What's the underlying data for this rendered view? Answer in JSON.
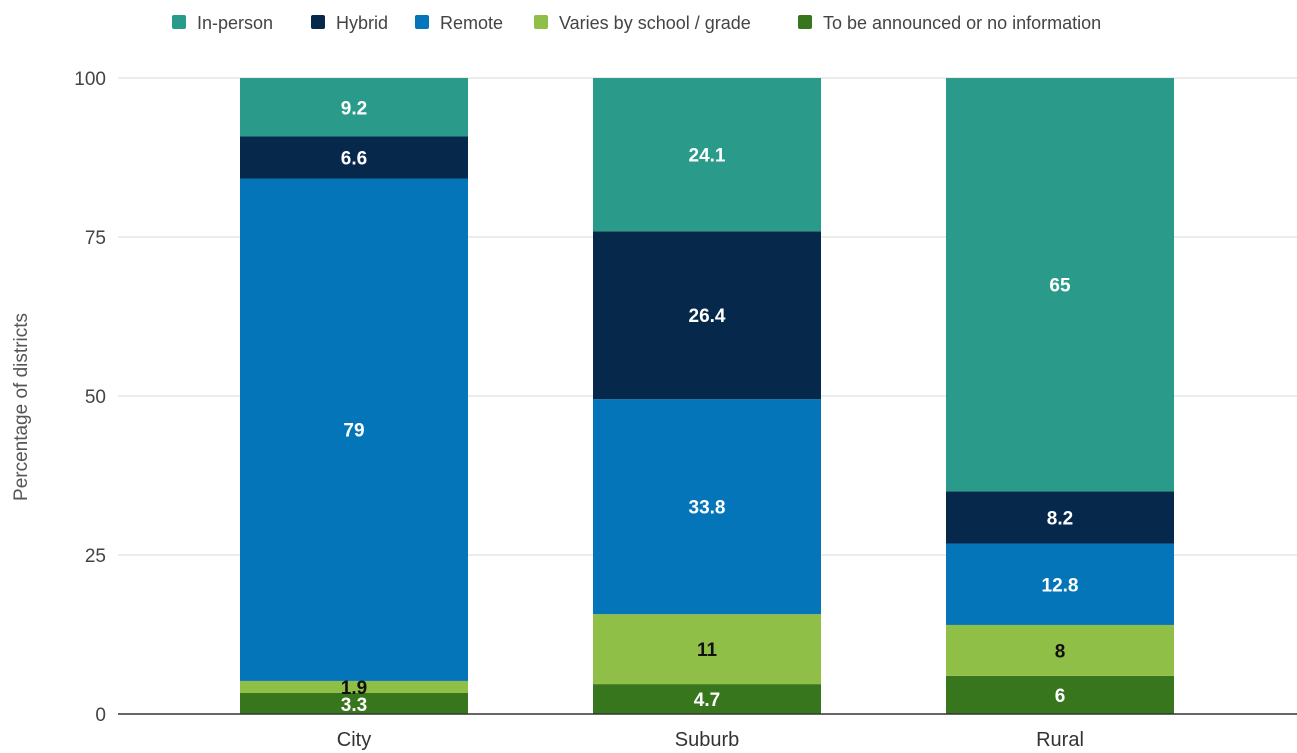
{
  "chart_data": {
    "type": "bar",
    "stacked": true,
    "categories": [
      "City",
      "Suburb",
      "Rural"
    ],
    "ylabel": "Percentage of districts",
    "xlabel": "",
    "ylim": [
      0,
      100
    ],
    "yticks": [
      0,
      25,
      50,
      75,
      100
    ],
    "grid": true,
    "legend_position": "top",
    "series": [
      {
        "name": "To be announced or no information",
        "color": "#38761d",
        "label_color": "#ffffff",
        "values": [
          3.3,
          4.7,
          6
        ]
      },
      {
        "name": "Varies by school / grade",
        "color": "#8fbf47",
        "label_color": "#111111",
        "values": [
          1.9,
          11,
          8
        ]
      },
      {
        "name": "Remote",
        "color": "#0475b9",
        "label_color": "#ffffff",
        "values": [
          79,
          33.8,
          12.8
        ]
      },
      {
        "name": "Hybrid",
        "color": "#06284b",
        "label_color": "#ffffff",
        "values": [
          6.6,
          26.4,
          8.2
        ]
      },
      {
        "name": "In-person",
        "color": "#2a9a8a",
        "label_color": "#ffffff",
        "values": [
          9.2,
          24.1,
          65
        ]
      }
    ],
    "legend_order": [
      "In-person",
      "Hybrid",
      "Remote",
      "Varies by school / grade",
      "To be announced or no information"
    ]
  }
}
